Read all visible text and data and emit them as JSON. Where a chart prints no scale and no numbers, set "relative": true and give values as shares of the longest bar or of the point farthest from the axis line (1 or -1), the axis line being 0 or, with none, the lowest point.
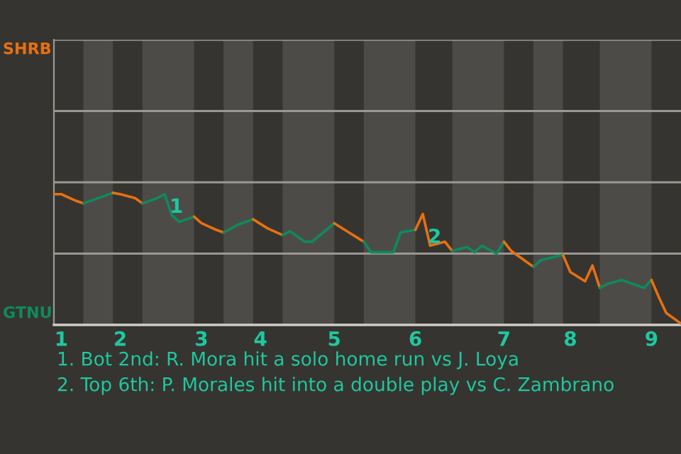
{
  "chart_data": {
    "type": "line",
    "relative": true,
    "categories": [
      null,
      "1",
      null,
      null,
      null,
      null,
      null,
      null,
      null,
      "2",
      null,
      null,
      null,
      null,
      null,
      null,
      null,
      null,
      null,
      null,
      "3",
      null,
      null,
      null,
      null,
      null,
      null,
      null,
      "4",
      null,
      null,
      null,
      null,
      null,
      null,
      null,
      null,
      null,
      "5",
      null,
      null,
      null,
      null,
      null,
      null,
      null,
      null,
      null,
      null,
      "6",
      null,
      null,
      null,
      null,
      null,
      null,
      null,
      null,
      null,
      null,
      null,
      "7",
      null,
      null,
      null,
      null,
      null,
      null,
      null,
      null,
      "8",
      null,
      null,
      null,
      null,
      null,
      null,
      null,
      null,
      null,
      null,
      "9",
      null,
      null,
      null,
      null
    ],
    "series": [
      {
        "color": "#e8700f",
        "values": [
          0.99,
          0.99,
          null,
          0.94,
          0.92,
          null,
          null,
          null,
          null,
          null,
          null,
          null,
          null,
          null,
          null,
          null,
          null,
          null,
          null,
          null,
          null,
          null,
          null,
          null,
          null,
          null,
          null,
          null,
          null,
          null,
          null,
          null,
          null,
          null,
          null,
          null,
          null,
          null,
          null,
          null,
          null,
          null,
          null,
          null,
          null,
          null,
          null,
          null,
          null,
          null,
          null,
          null,
          null,
          null,
          null,
          null,
          null,
          null,
          null,
          null,
          null,
          null,
          null,
          null,
          null,
          null,
          null,
          null,
          null,
          null,
          null,
          null,
          null,
          null,
          null,
          null,
          null,
          null,
          null,
          null,
          null,
          null,
          null,
          null,
          null,
          null
        ]
      },
      {
        "color": "#0e8a5e",
        "values": [
          null,
          null,
          null,
          null,
          0.92,
          null,
          0.96,
          null,
          1,
          null,
          null,
          null,
          null,
          null,
          null,
          null,
          null,
          null,
          null,
          null,
          null,
          null,
          null,
          null,
          null,
          null,
          null,
          null,
          null,
          null,
          null,
          null,
          null,
          null,
          null,
          null,
          null,
          null,
          null,
          null,
          null,
          null,
          null,
          null,
          null,
          null,
          null,
          null,
          null,
          null,
          null,
          null,
          null,
          null,
          null,
          null,
          null,
          null,
          null,
          null,
          null,
          null,
          null,
          null,
          null,
          null,
          null,
          null,
          null,
          null,
          null,
          null,
          null,
          null,
          null,
          null,
          null,
          null,
          null,
          null,
          null,
          null,
          null,
          null,
          null,
          null
        ]
      },
      {
        "color": "#e8700f",
        "values": [
          null,
          null,
          null,
          null,
          null,
          null,
          null,
          null,
          1,
          0.99,
          null,
          0.96,
          0.92,
          null,
          null,
          null,
          null,
          null,
          null,
          null,
          null,
          null,
          null,
          null,
          null,
          null,
          null,
          null,
          null,
          null,
          null,
          null,
          null,
          null,
          null,
          null,
          null,
          null,
          null,
          null,
          null,
          null,
          null,
          null,
          null,
          null,
          null,
          null,
          null,
          null,
          null,
          null,
          null,
          null,
          null,
          null,
          null,
          null,
          null,
          null,
          null,
          null,
          null,
          null,
          null,
          null,
          null,
          null,
          null,
          null,
          null,
          null,
          null,
          null,
          null,
          null,
          null,
          null,
          null,
          null,
          null,
          null,
          null,
          null,
          null,
          null
        ]
      },
      {
        "color": "#0e8a5e",
        "values": [
          null,
          null,
          null,
          null,
          null,
          null,
          null,
          null,
          null,
          null,
          null,
          null,
          0.92,
          null,
          0.96,
          0.99,
          0.83,
          0.78,
          null,
          0.82,
          null,
          null,
          null,
          null,
          null,
          null,
          null,
          null,
          null,
          null,
          null,
          null,
          null,
          null,
          null,
          null,
          null,
          null,
          null,
          null,
          null,
          null,
          null,
          null,
          null,
          null,
          null,
          null,
          null,
          null,
          null,
          null,
          null,
          null,
          null,
          null,
          null,
          null,
          null,
          null,
          null,
          null,
          null,
          null,
          null,
          null,
          null,
          null,
          null,
          null,
          null,
          null,
          null,
          null,
          null,
          null,
          null,
          null,
          null,
          null,
          null,
          null,
          null,
          null,
          null,
          null
        ]
      },
      {
        "color": "#e8700f",
        "values": [
          null,
          null,
          null,
          null,
          null,
          null,
          null,
          null,
          null,
          null,
          null,
          null,
          null,
          null,
          null,
          null,
          null,
          null,
          null,
          0.82,
          0.77,
          null,
          0.72,
          0.7,
          null,
          null,
          null,
          null,
          null,
          null,
          null,
          null,
          null,
          null,
          null,
          null,
          null,
          null,
          null,
          null,
          null,
          null,
          null,
          null,
          null,
          null,
          null,
          null,
          null,
          null,
          null,
          null,
          null,
          null,
          null,
          null,
          null,
          null,
          null,
          null,
          null,
          null,
          null,
          null,
          null,
          null,
          null,
          null,
          null,
          null,
          null,
          null,
          null,
          null,
          null,
          null,
          null,
          null,
          null,
          null,
          null,
          null,
          null,
          null,
          null,
          null
        ]
      },
      {
        "color": "#0e8a5e",
        "values": [
          null,
          null,
          null,
          null,
          null,
          null,
          null,
          null,
          null,
          null,
          null,
          null,
          null,
          null,
          null,
          null,
          null,
          null,
          null,
          null,
          null,
          null,
          null,
          0.7,
          null,
          0.76,
          null,
          0.8,
          null,
          null,
          null,
          null,
          null,
          null,
          null,
          null,
          null,
          null,
          null,
          null,
          null,
          null,
          null,
          null,
          null,
          null,
          null,
          null,
          null,
          null,
          null,
          null,
          null,
          null,
          null,
          null,
          null,
          null,
          null,
          null,
          null,
          null,
          null,
          null,
          null,
          null,
          null,
          null,
          null,
          null,
          null,
          null,
          null,
          null,
          null,
          null,
          null,
          null,
          null,
          null,
          null,
          null,
          null,
          null,
          null,
          null
        ]
      },
      {
        "color": "#e8700f",
        "values": [
          null,
          null,
          null,
          null,
          null,
          null,
          null,
          null,
          null,
          null,
          null,
          null,
          null,
          null,
          null,
          null,
          null,
          null,
          null,
          null,
          null,
          null,
          null,
          null,
          null,
          null,
          null,
          0.8,
          null,
          0.73,
          null,
          0.68,
          null,
          null,
          null,
          null,
          null,
          null,
          null,
          null,
          null,
          null,
          null,
          null,
          null,
          null,
          null,
          null,
          null,
          null,
          null,
          null,
          null,
          null,
          null,
          null,
          null,
          null,
          null,
          null,
          null,
          null,
          null,
          null,
          null,
          null,
          null,
          null,
          null,
          null,
          null,
          null,
          null,
          null,
          null,
          null,
          null,
          null,
          null,
          null,
          null,
          null,
          null,
          null,
          null,
          null
        ]
      },
      {
        "color": "#0e8a5e",
        "values": [
          null,
          null,
          null,
          null,
          null,
          null,
          null,
          null,
          null,
          null,
          null,
          null,
          null,
          null,
          null,
          null,
          null,
          null,
          null,
          null,
          null,
          null,
          null,
          null,
          null,
          null,
          null,
          null,
          null,
          null,
          null,
          0.68,
          0.71,
          null,
          0.63,
          0.63,
          null,
          null,
          0.77,
          null,
          null,
          null,
          null,
          null,
          null,
          null,
          null,
          null,
          null,
          null,
          null,
          null,
          null,
          null,
          null,
          null,
          null,
          null,
          null,
          null,
          null,
          null,
          null,
          null,
          null,
          null,
          null,
          null,
          null,
          null,
          null,
          null,
          null,
          null,
          null,
          null,
          null,
          null,
          null,
          null,
          null,
          null,
          null,
          null,
          null,
          null
        ]
      },
      {
        "color": "#e8700f",
        "values": [
          null,
          null,
          null,
          null,
          null,
          null,
          null,
          null,
          null,
          null,
          null,
          null,
          null,
          null,
          null,
          null,
          null,
          null,
          null,
          null,
          null,
          null,
          null,
          null,
          null,
          null,
          null,
          null,
          null,
          null,
          null,
          null,
          null,
          null,
          null,
          null,
          null,
          null,
          0.77,
          null,
          0.7,
          null,
          0.63,
          null,
          null,
          null,
          null,
          null,
          null,
          null,
          null,
          null,
          null,
          null,
          null,
          null,
          null,
          null,
          null,
          null,
          null,
          null,
          null,
          null,
          null,
          null,
          null,
          null,
          null,
          null,
          null,
          null,
          null,
          null,
          null,
          null,
          null,
          null,
          null,
          null,
          null,
          null,
          null,
          null,
          null,
          null
        ]
      },
      {
        "color": "#0e8a5e",
        "values": [
          null,
          null,
          null,
          null,
          null,
          null,
          null,
          null,
          null,
          null,
          null,
          null,
          null,
          null,
          null,
          null,
          null,
          null,
          null,
          null,
          null,
          null,
          null,
          null,
          null,
          null,
          null,
          null,
          null,
          null,
          null,
          null,
          null,
          null,
          null,
          null,
          null,
          null,
          null,
          null,
          null,
          null,
          0.63,
          0.55,
          null,
          null,
          0.55,
          0.7,
          null,
          0.72,
          null,
          null,
          null,
          null,
          null,
          null,
          null,
          null,
          null,
          null,
          null,
          null,
          null,
          null,
          null,
          null,
          null,
          null,
          null,
          null,
          null,
          null,
          null,
          null,
          null,
          null,
          null,
          null,
          null,
          null,
          null,
          null,
          null,
          null,
          null,
          null
        ]
      },
      {
        "color": "#e8700f",
        "values": [
          null,
          null,
          null,
          null,
          null,
          null,
          null,
          null,
          null,
          null,
          null,
          null,
          null,
          null,
          null,
          null,
          null,
          null,
          null,
          null,
          null,
          null,
          null,
          null,
          null,
          null,
          null,
          null,
          null,
          null,
          null,
          null,
          null,
          null,
          null,
          null,
          null,
          null,
          null,
          null,
          null,
          null,
          null,
          null,
          null,
          null,
          null,
          null,
          null,
          0.72,
          0.84,
          0.6,
          null,
          0.63,
          0.56,
          null,
          null,
          null,
          null,
          null,
          null,
          null,
          null,
          null,
          null,
          null,
          null,
          null,
          null,
          null,
          null,
          null,
          null,
          null,
          null,
          null,
          null,
          null,
          null,
          null,
          null,
          null,
          null,
          null,
          null,
          null
        ]
      },
      {
        "color": "#0e8a5e",
        "values": [
          null,
          null,
          null,
          null,
          null,
          null,
          null,
          null,
          null,
          null,
          null,
          null,
          null,
          null,
          null,
          null,
          null,
          null,
          null,
          null,
          null,
          null,
          null,
          null,
          null,
          null,
          null,
          null,
          null,
          null,
          null,
          null,
          null,
          null,
          null,
          null,
          null,
          null,
          null,
          null,
          null,
          null,
          null,
          null,
          null,
          null,
          null,
          null,
          null,
          null,
          null,
          null,
          null,
          null,
          0.56,
          null,
          0.59,
          0.55,
          0.6,
          null,
          0.54,
          0.63,
          null,
          null,
          null,
          null,
          null,
          null,
          null,
          null,
          null,
          null,
          null,
          null,
          null,
          null,
          null,
          null,
          null,
          null,
          null,
          null,
          null,
          null,
          null,
          null
        ]
      },
      {
        "color": "#e8700f",
        "values": [
          null,
          null,
          null,
          null,
          null,
          null,
          null,
          null,
          null,
          null,
          null,
          null,
          null,
          null,
          null,
          null,
          null,
          null,
          null,
          null,
          null,
          null,
          null,
          null,
          null,
          null,
          null,
          null,
          null,
          null,
          null,
          null,
          null,
          null,
          null,
          null,
          null,
          null,
          null,
          null,
          null,
          null,
          null,
          null,
          null,
          null,
          null,
          null,
          null,
          null,
          null,
          null,
          null,
          null,
          null,
          null,
          null,
          null,
          null,
          null,
          null,
          0.63,
          0.56,
          null,
          0.48,
          0.44,
          null,
          null,
          null,
          null,
          null,
          null,
          null,
          null,
          null,
          null,
          null,
          null,
          null,
          null,
          null,
          null,
          null,
          null,
          null,
          null
        ]
      },
      {
        "color": "#0e8a5e",
        "values": [
          null,
          null,
          null,
          null,
          null,
          null,
          null,
          null,
          null,
          null,
          null,
          null,
          null,
          null,
          null,
          null,
          null,
          null,
          null,
          null,
          null,
          null,
          null,
          null,
          null,
          null,
          null,
          null,
          null,
          null,
          null,
          null,
          null,
          null,
          null,
          null,
          null,
          null,
          null,
          null,
          null,
          null,
          null,
          null,
          null,
          null,
          null,
          null,
          null,
          null,
          null,
          null,
          null,
          null,
          null,
          null,
          null,
          null,
          null,
          null,
          null,
          null,
          null,
          null,
          null,
          0.44,
          0.49,
          null,
          null,
          0.53,
          null,
          null,
          null,
          null,
          null,
          null,
          null,
          null,
          null,
          null,
          null,
          null,
          null,
          null,
          null,
          null
        ]
      },
      {
        "color": "#e8700f",
        "values": [
          null,
          null,
          null,
          null,
          null,
          null,
          null,
          null,
          null,
          null,
          null,
          null,
          null,
          null,
          null,
          null,
          null,
          null,
          null,
          null,
          null,
          null,
          null,
          null,
          null,
          null,
          null,
          null,
          null,
          null,
          null,
          null,
          null,
          null,
          null,
          null,
          null,
          null,
          null,
          null,
          null,
          null,
          null,
          null,
          null,
          null,
          null,
          null,
          null,
          null,
          null,
          null,
          null,
          null,
          null,
          null,
          null,
          null,
          null,
          null,
          null,
          null,
          null,
          null,
          null,
          null,
          null,
          null,
          null,
          0.53,
          0.4,
          null,
          0.33,
          0.45,
          0.28,
          null,
          null,
          null,
          null,
          null,
          null,
          null,
          null,
          null,
          null,
          null
        ]
      },
      {
        "color": "#0e8a5e",
        "values": [
          null,
          null,
          null,
          null,
          null,
          null,
          null,
          null,
          null,
          null,
          null,
          null,
          null,
          null,
          null,
          null,
          null,
          null,
          null,
          null,
          null,
          null,
          null,
          null,
          null,
          null,
          null,
          null,
          null,
          null,
          null,
          null,
          null,
          null,
          null,
          null,
          null,
          null,
          null,
          null,
          null,
          null,
          null,
          null,
          null,
          null,
          null,
          null,
          null,
          null,
          null,
          null,
          null,
          null,
          null,
          null,
          null,
          null,
          null,
          null,
          null,
          null,
          null,
          null,
          null,
          null,
          null,
          null,
          null,
          null,
          null,
          null,
          null,
          null,
          0.28,
          0.31,
          null,
          0.34,
          null,
          null,
          0.28,
          0.34,
          null,
          null,
          null,
          null
        ]
      },
      {
        "color": "#e8700f",
        "values": [
          null,
          null,
          null,
          null,
          null,
          null,
          null,
          null,
          null,
          null,
          null,
          null,
          null,
          null,
          null,
          null,
          null,
          null,
          null,
          null,
          null,
          null,
          null,
          null,
          null,
          null,
          null,
          null,
          null,
          null,
          null,
          null,
          null,
          null,
          null,
          null,
          null,
          null,
          null,
          null,
          null,
          null,
          null,
          null,
          null,
          null,
          null,
          null,
          null,
          null,
          null,
          null,
          null,
          null,
          null,
          null,
          null,
          null,
          null,
          null,
          null,
          null,
          null,
          null,
          null,
          null,
          null,
          null,
          null,
          null,
          null,
          null,
          null,
          null,
          null,
          null,
          null,
          null,
          null,
          null,
          null,
          0.34,
          0.21,
          0.09,
          null,
          0.01
        ]
      }
    ],
    "ref_lines": [
      {
        "axis": "y",
        "value": 0.54,
        "color": "#9a9893"
      },
      {
        "axis": "y",
        "value": 1.08,
        "color": "#9a9893"
      },
      {
        "axis": "y",
        "value": 1.62,
        "color": "#9a9893"
      },
      {
        "axis": "y",
        "value": 2.16,
        "color": "#9a9893"
      }
    ],
    "annotations": [
      "SHRB",
      "GTNU",
      {
        "text": "1",
        "y": 0.83
      },
      {
        "text": "2",
        "y": 0.6
      },
      "1. Bot 2nd: R. Mora hit a solo home run vs J. Loya",
      "2. Top 6th: P. Morales hit into a double play vs C. Zambrano"
    ]
  }
}
